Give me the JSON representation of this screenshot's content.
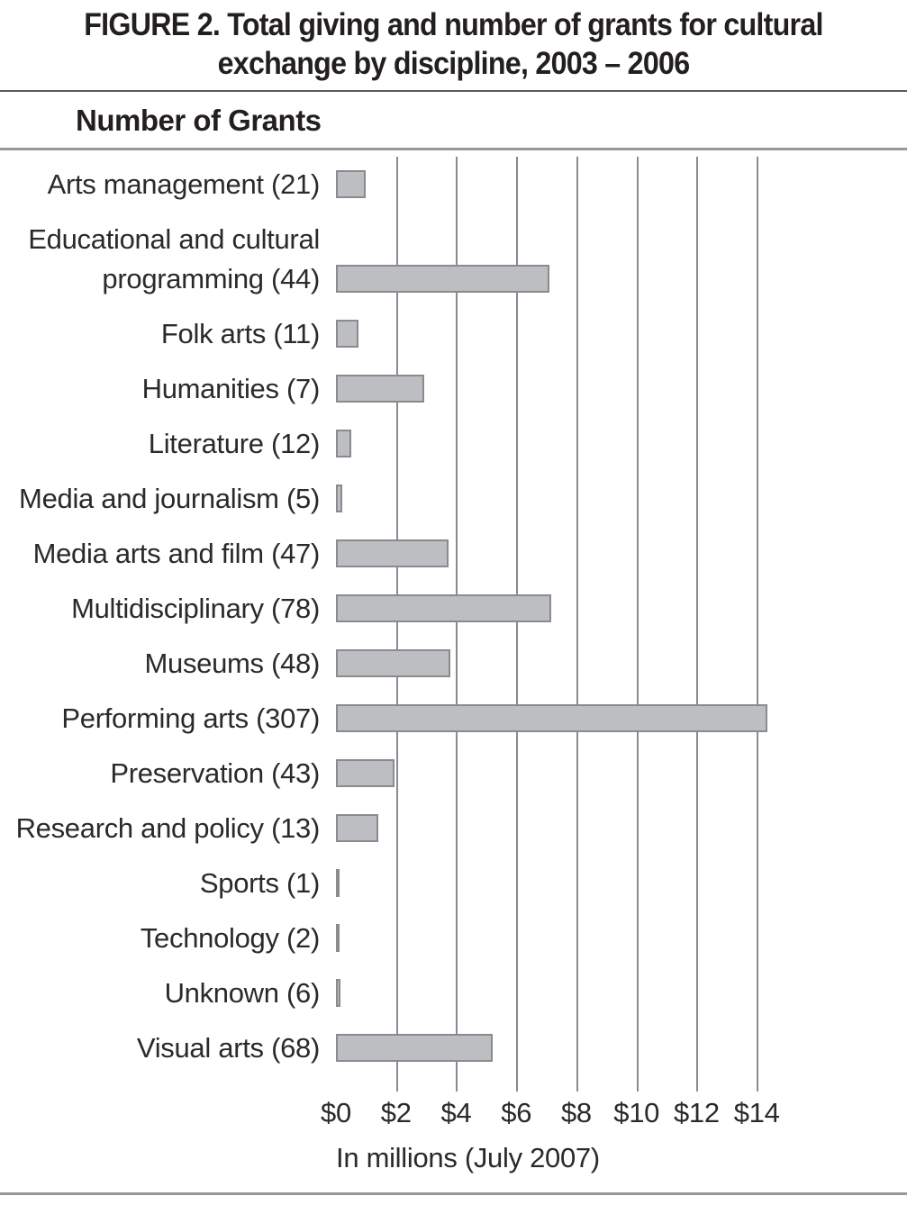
{
  "figure": {
    "title_line1": "FIGURE 2. Total giving and number of grants for cultural",
    "title_line2": "exchange by discipline, 2003 – 2006",
    "column_header": "Number of Grants"
  },
  "chart_data": {
    "type": "bar",
    "orientation": "horizontal",
    "title": "FIGURE 2. Total giving and number of grants for cultural exchange by discipline, 2003 – 2006",
    "xlabel": "In millions (July 2007)",
    "unit": "USD millions (July 2007)",
    "grid": true,
    "categories": [
      "Arts management",
      "Educational and cultural programming",
      "Folk arts",
      "Humanities",
      "Literature",
      "Media and journalism",
      "Media arts and film",
      "Multidisciplinary",
      "Museums",
      "Performing arts",
      "Preservation",
      "Research and policy",
      "Sports",
      "Technology",
      "Unknown",
      "Visual arts"
    ],
    "grant_counts": [
      21,
      44,
      11,
      7,
      12,
      5,
      47,
      78,
      48,
      307,
      43,
      13,
      1,
      2,
      6,
      68
    ],
    "label_lines": [
      [
        "Arts management (21)"
      ],
      [
        "Educational and cultural",
        "programming (44)"
      ],
      [
        "Folk arts (11)"
      ],
      [
        "Humanities (7)"
      ],
      [
        "Literature (12)"
      ],
      [
        "Media and journalism (5)"
      ],
      [
        "Media arts and film (47)"
      ],
      [
        "Multidisciplinary (78)"
      ],
      [
        "Museums (48)"
      ],
      [
        "Performing arts (307)"
      ],
      [
        "Preservation (43)"
      ],
      [
        "Research and policy (13)"
      ],
      [
        "Sports (1)"
      ],
      [
        "Technology (2)"
      ],
      [
        "Unknown (6)"
      ],
      [
        "Visual arts (68)"
      ]
    ],
    "values_millions": [
      1.0,
      7.1,
      0.75,
      2.95,
      0.5,
      0.2,
      3.75,
      7.15,
      3.8,
      14.35,
      1.95,
      1.4,
      0.06,
      0.06,
      0.14,
      5.2
    ],
    "x_ticks": [
      "$0",
      "$2",
      "$4",
      "$6",
      "$8",
      "$10",
      "$12",
      "$14"
    ],
    "x_tick_values": [
      0,
      2,
      4,
      6,
      8,
      10,
      12,
      14
    ],
    "x_axis_range_shown": [
      0,
      14
    ],
    "x_axis_max_rendered": 19,
    "legend_position": "none",
    "bar_color": "#bdbec2",
    "bar_border_color": "#8a8b8f",
    "gridline_color": "#8a8b8f"
  }
}
